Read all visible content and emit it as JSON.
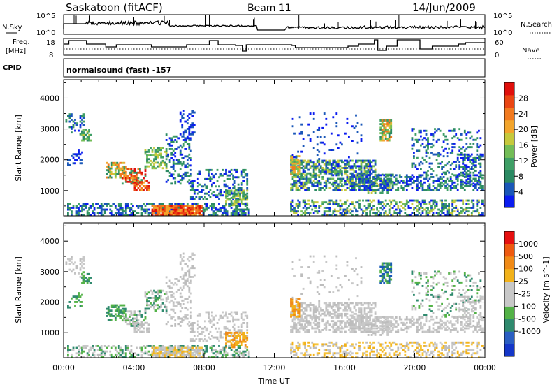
{
  "header": {
    "station": "Saskatoon (fitACF)",
    "beam": "Beam 11",
    "date": "14/Jun/2009"
  },
  "nsky_panel": {
    "left_label": "N.Sky",
    "y_top": "10^5",
    "y_bottom": "10^0",
    "right_label": "N.Search",
    "r_top": "10^5",
    "r_bottom": "10^0"
  },
  "freq_panel": {
    "left_label_1": "Freq.",
    "left_label_2": "[MHz]",
    "y_top": "18",
    "y_bottom": "8",
    "right_label": "Nave",
    "r_top": "60",
    "r_bottom": "0"
  },
  "cpid_panel": {
    "left_label": "CPID",
    "program": "normalsound (fast) -157"
  },
  "chart_data": [
    {
      "type": "heatmap",
      "ylabel": "Slant Range [km]",
      "ylim": [
        180,
        4600
      ],
      "yticks": [
        "1000",
        "2000",
        "3000",
        "4000"
      ],
      "colorbar": {
        "label": "Power [dB]",
        "ticks": [
          "4",
          "8",
          "12",
          "16",
          "20",
          "24",
          "28"
        ],
        "colors": [
          "#0a1cf0",
          "#1a57b8",
          "#2b8a63",
          "#3f9f66",
          "#73bd57",
          "#c6c93c",
          "#f3a52c",
          "#f27a1f",
          "#ea4512",
          "#e00f0b"
        ]
      }
    },
    {
      "type": "heatmap",
      "ylabel": "Slant Range [km]",
      "ylim": [
        180,
        4600
      ],
      "yticks": [
        "1000",
        "2000",
        "3000",
        "4000"
      ],
      "colorbar": {
        "label": "Velocity [m s^-1]",
        "ticks": [
          "1000",
          "500",
          "100",
          "25",
          "-25",
          "-100",
          "-500",
          "-1000"
        ],
        "colors": [
          "#1436c8",
          "#2a5ec2",
          "#2f8a6e",
          "#53b247",
          "#c8c8c8",
          "#c8c8c8",
          "#f2b21a",
          "#f08a16",
          "#ee5a10",
          "#e61010"
        ]
      }
    }
  ],
  "x_axis": {
    "ticks": [
      "00:00",
      "04:00",
      "08:00",
      "12:00",
      "16:00",
      "20:00",
      "00:00"
    ],
    "label": "Time UT"
  }
}
